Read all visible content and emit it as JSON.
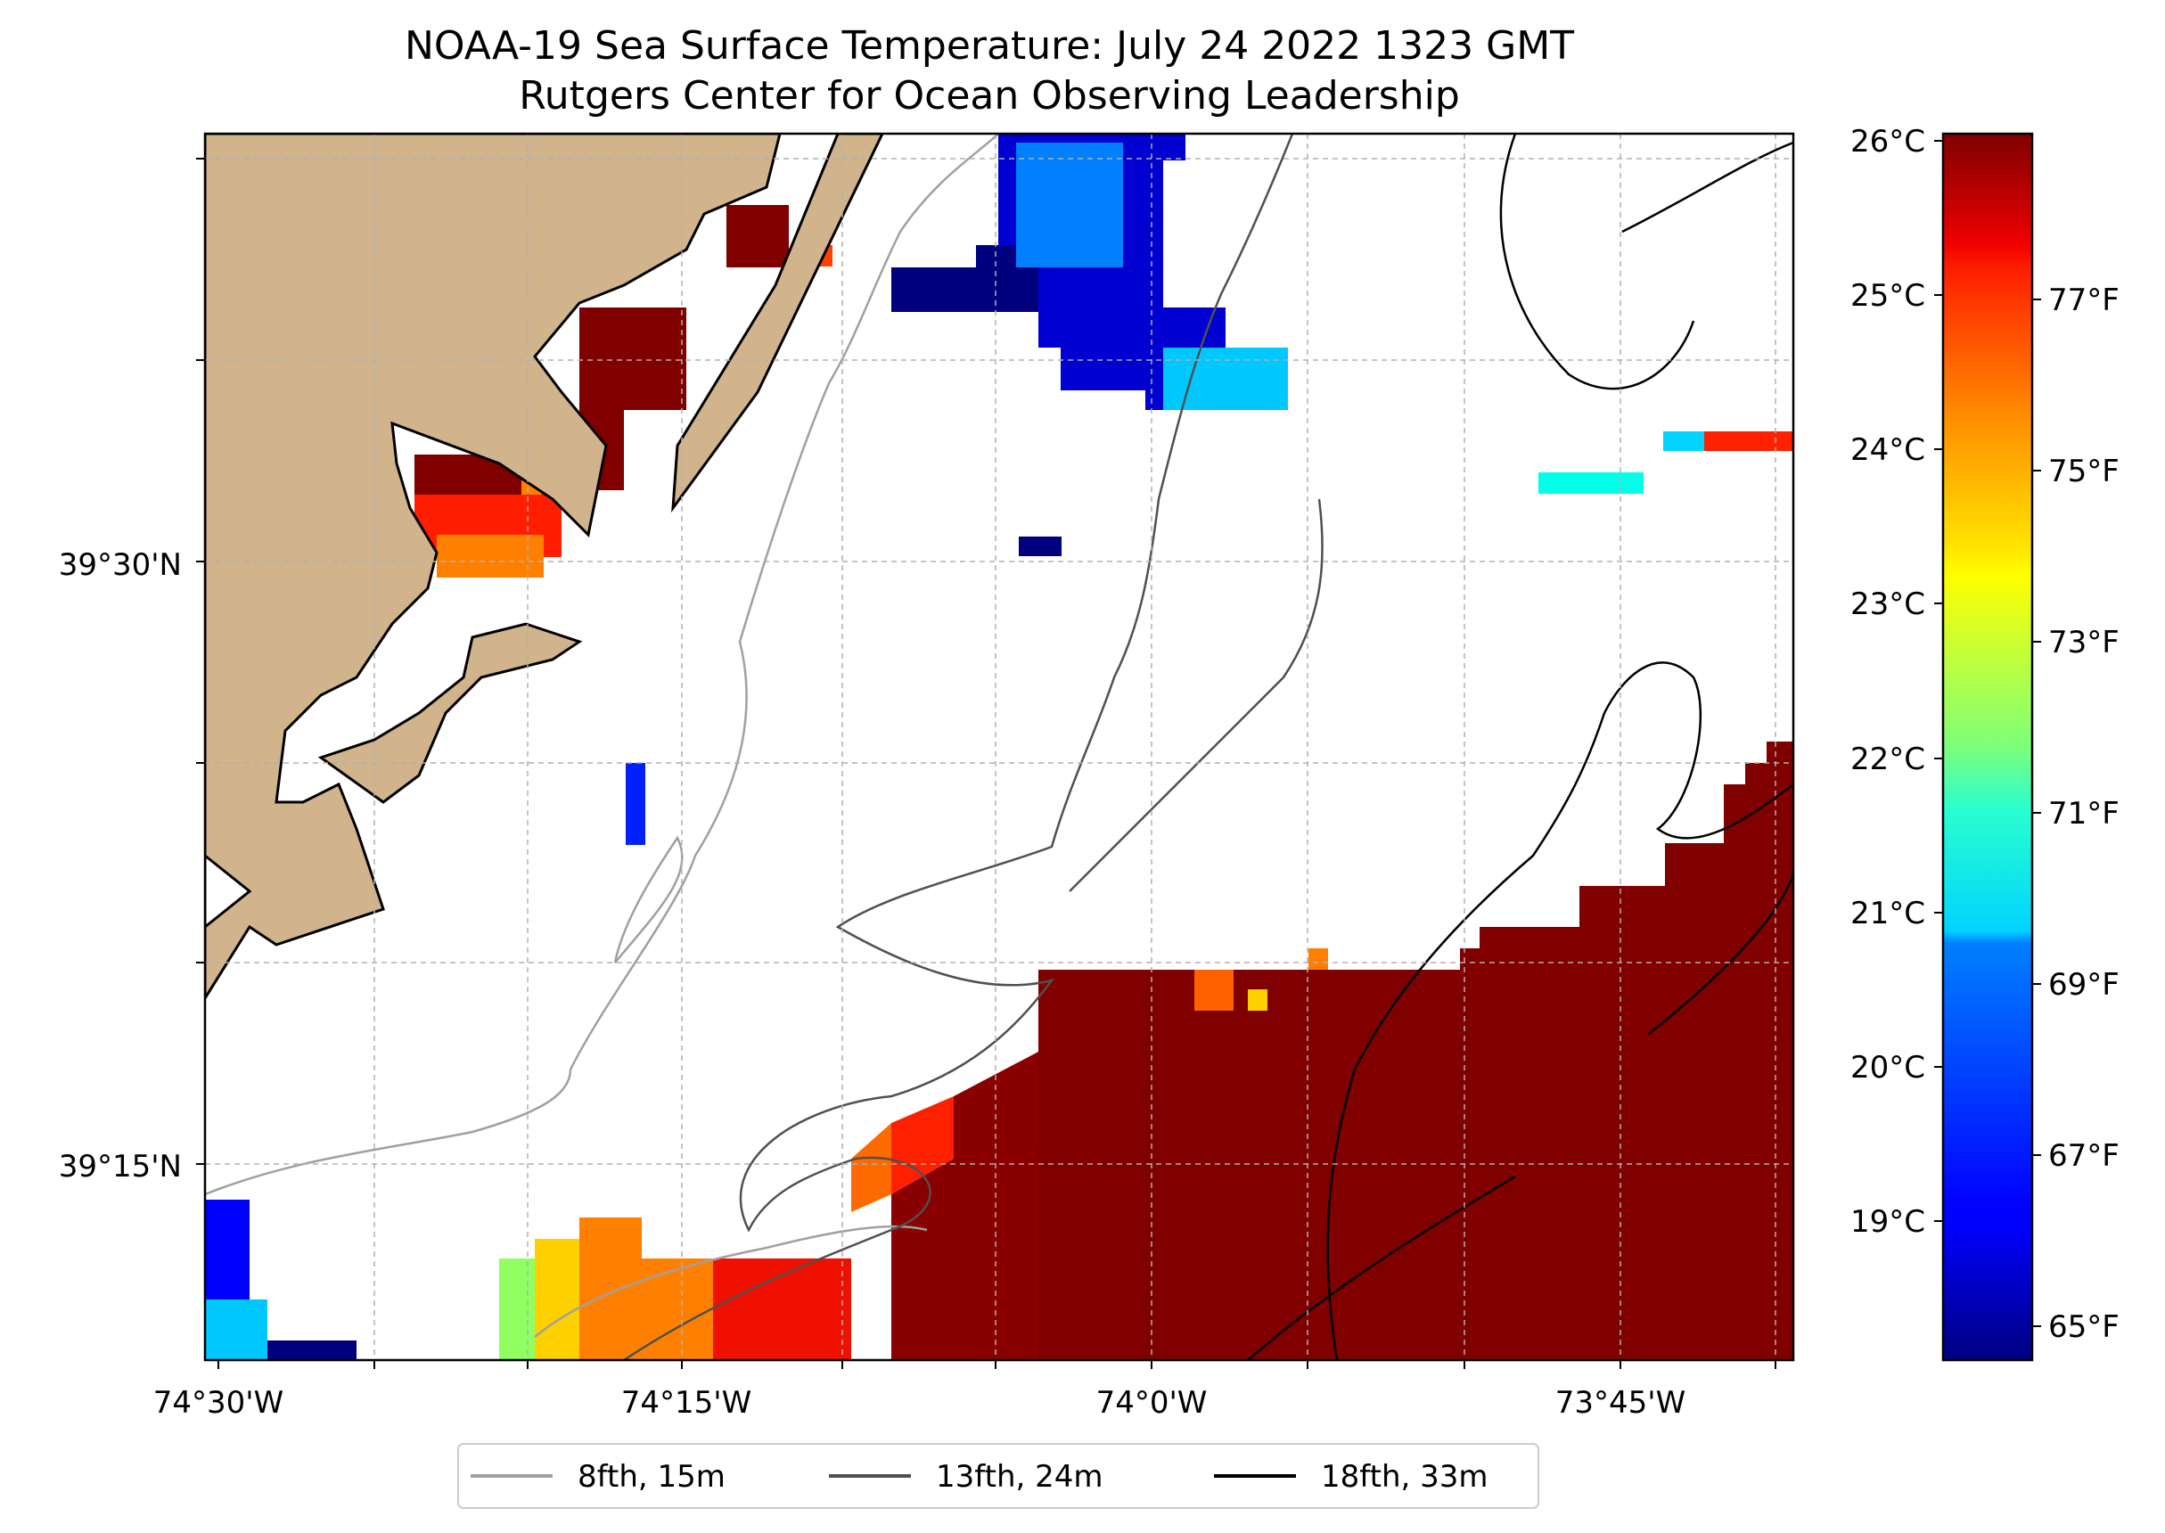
{
  "title": {
    "line1": "NOAA-19 Sea Surface Temperature: July 24 2022 1323 GMT",
    "line2": "Rutgers Center for Ocean Observing Leadership"
  },
  "map": {
    "lon_labels": [
      "74°30'W",
      "74°15'W",
      "74°0'W",
      "73°45'W"
    ],
    "lat_labels": [
      "39°30'N",
      "39°15'N"
    ],
    "land_color": "#d2b48c",
    "grid_color": "#b0b0b0"
  },
  "colorbar": {
    "colormap": "jet",
    "celsius_labels": [
      "26°C",
      "25°C",
      "24°C",
      "23°C",
      "22°C",
      "21°C",
      "20°C",
      "19°C"
    ],
    "fahrenheit_labels": [
      "77°F",
      "75°F",
      "73°F",
      "71°F",
      "69°F",
      "67°F",
      "65°F"
    ]
  },
  "legend": [
    {
      "label": "8fth, 15m",
      "color": "#a0a0a0"
    },
    {
      "label": "13fth, 24m",
      "color": "#505050"
    },
    {
      "label": "18fth, 33m",
      "color": "#000000"
    }
  ]
}
